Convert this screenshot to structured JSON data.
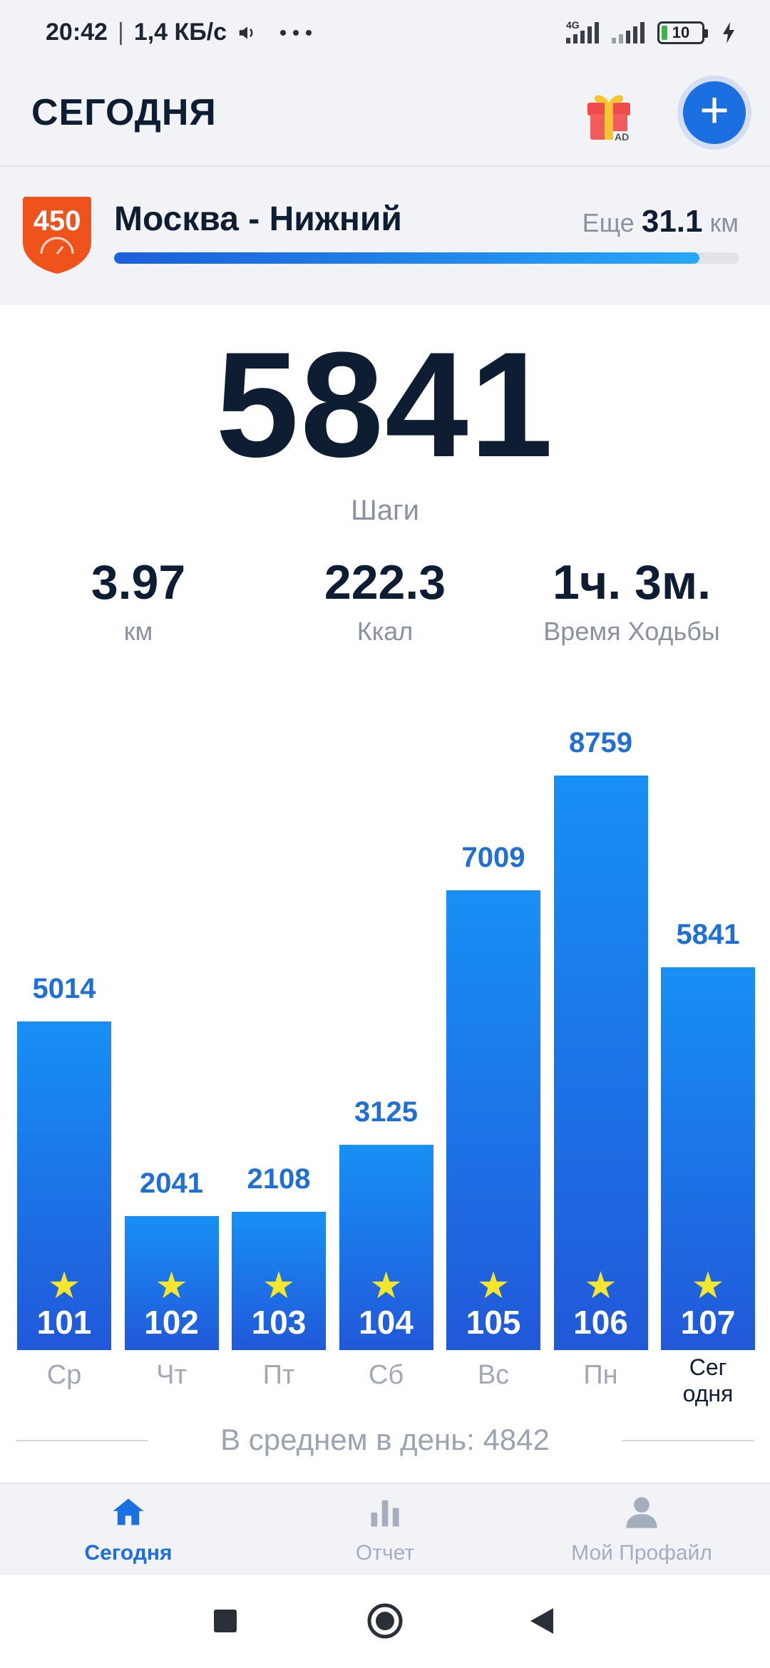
{
  "status_bar": {
    "time": "20:42",
    "speed": "1,4 КБ/с",
    "network": "4G",
    "battery": "10",
    "icons": [
      "volume-icon",
      "more-dots-icon",
      "signal-icon",
      "battery-icon",
      "charging-icon"
    ]
  },
  "header": {
    "title": "СЕГОДНЯ",
    "gift_badge": "AD",
    "add_label": "+"
  },
  "route": {
    "badge_number": "450",
    "name": "Москва - Нижний",
    "remaining_prefix": "Еще",
    "remaining_value": "31.1",
    "remaining_unit": "км",
    "progress": 0.937
  },
  "summary": {
    "steps": "5841",
    "steps_label": "Шаги",
    "distance_value": "3.97",
    "distance_label": "км",
    "calories_value": "222.3",
    "calories_label": "Ккал",
    "time_value": "1ч. 3м.",
    "time_label": "Время Ходьбы"
  },
  "chart_data": {
    "type": "bar",
    "categories": [
      "Ср",
      "Чт",
      "Пт",
      "Сб",
      "Вс",
      "Пн",
      "Сег одня"
    ],
    "values": [
      5014,
      2041,
      2108,
      3125,
      7009,
      8759,
      5841
    ],
    "value_labels": [
      "5014",
      "2041",
      "2108",
      "3125",
      "7009",
      "8759",
      "5841"
    ],
    "day_numbers": [
      "101",
      "102",
      "103",
      "104",
      "105",
      "106",
      "107"
    ],
    "today_label_lines": [
      "Сег",
      "одня"
    ],
    "title": "",
    "xlabel": "",
    "ylabel": "",
    "ylim": [
      0,
      8759
    ]
  },
  "average": {
    "label": "В среднем в день: 4842"
  },
  "bottom_nav": {
    "items": [
      {
        "label": "Сегодня",
        "icon": "home-icon",
        "active": true
      },
      {
        "label": "Отчет",
        "icon": "bar-chart-icon",
        "active": false
      },
      {
        "label": "Мой Профайл",
        "icon": "person-icon",
        "active": false
      }
    ]
  },
  "colors": {
    "accent": "#1b6fe0",
    "bar_top": "#1790f5",
    "bar_bottom": "#2158d9",
    "star": "#f4e62c",
    "badge": "#f0521b"
  }
}
